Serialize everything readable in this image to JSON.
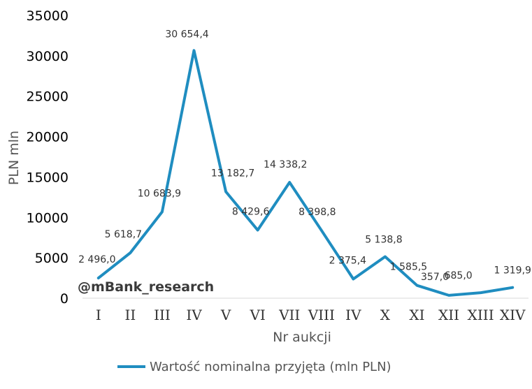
{
  "chart_data": {
    "type": "line",
    "xlabel": "Nr aukcji",
    "ylabel": "PLN mln",
    "ylim": [
      0,
      35000
    ],
    "yticks": [
      "0",
      "5000",
      "10000",
      "15000",
      "20000",
      "25000",
      "30000",
      "35000"
    ],
    "categories": [
      "I",
      "II",
      "III",
      "IV",
      "V",
      "VI",
      "VII",
      "VIII",
      "IV",
      "X",
      "XI",
      "XII",
      "XIII",
      "XIV"
    ],
    "series": [
      {
        "name": "Wartość nominalna przyjęta (mln PLN)",
        "color": "#1F8DC0",
        "values": [
          2496.0,
          5618.7,
          10683.9,
          30654.4,
          13182.7,
          8429.6,
          14338.2,
          8398.8,
          2375.4,
          5138.8,
          1585.5,
          357.0,
          685.0,
          1319.9
        ],
        "labels": [
          "2 496,0",
          "5 618,7",
          "10 683,9",
          "30 654,4",
          "13 182,7",
          "8 429,6",
          "14 338,2",
          "8 398,8",
          "2 375,4",
          "5 138,8",
          "1 585,5",
          "357,0",
          "685,0",
          "1 319,9"
        ]
      }
    ],
    "grid": false,
    "legend": "bottom",
    "watermark": "@mBank_research"
  }
}
